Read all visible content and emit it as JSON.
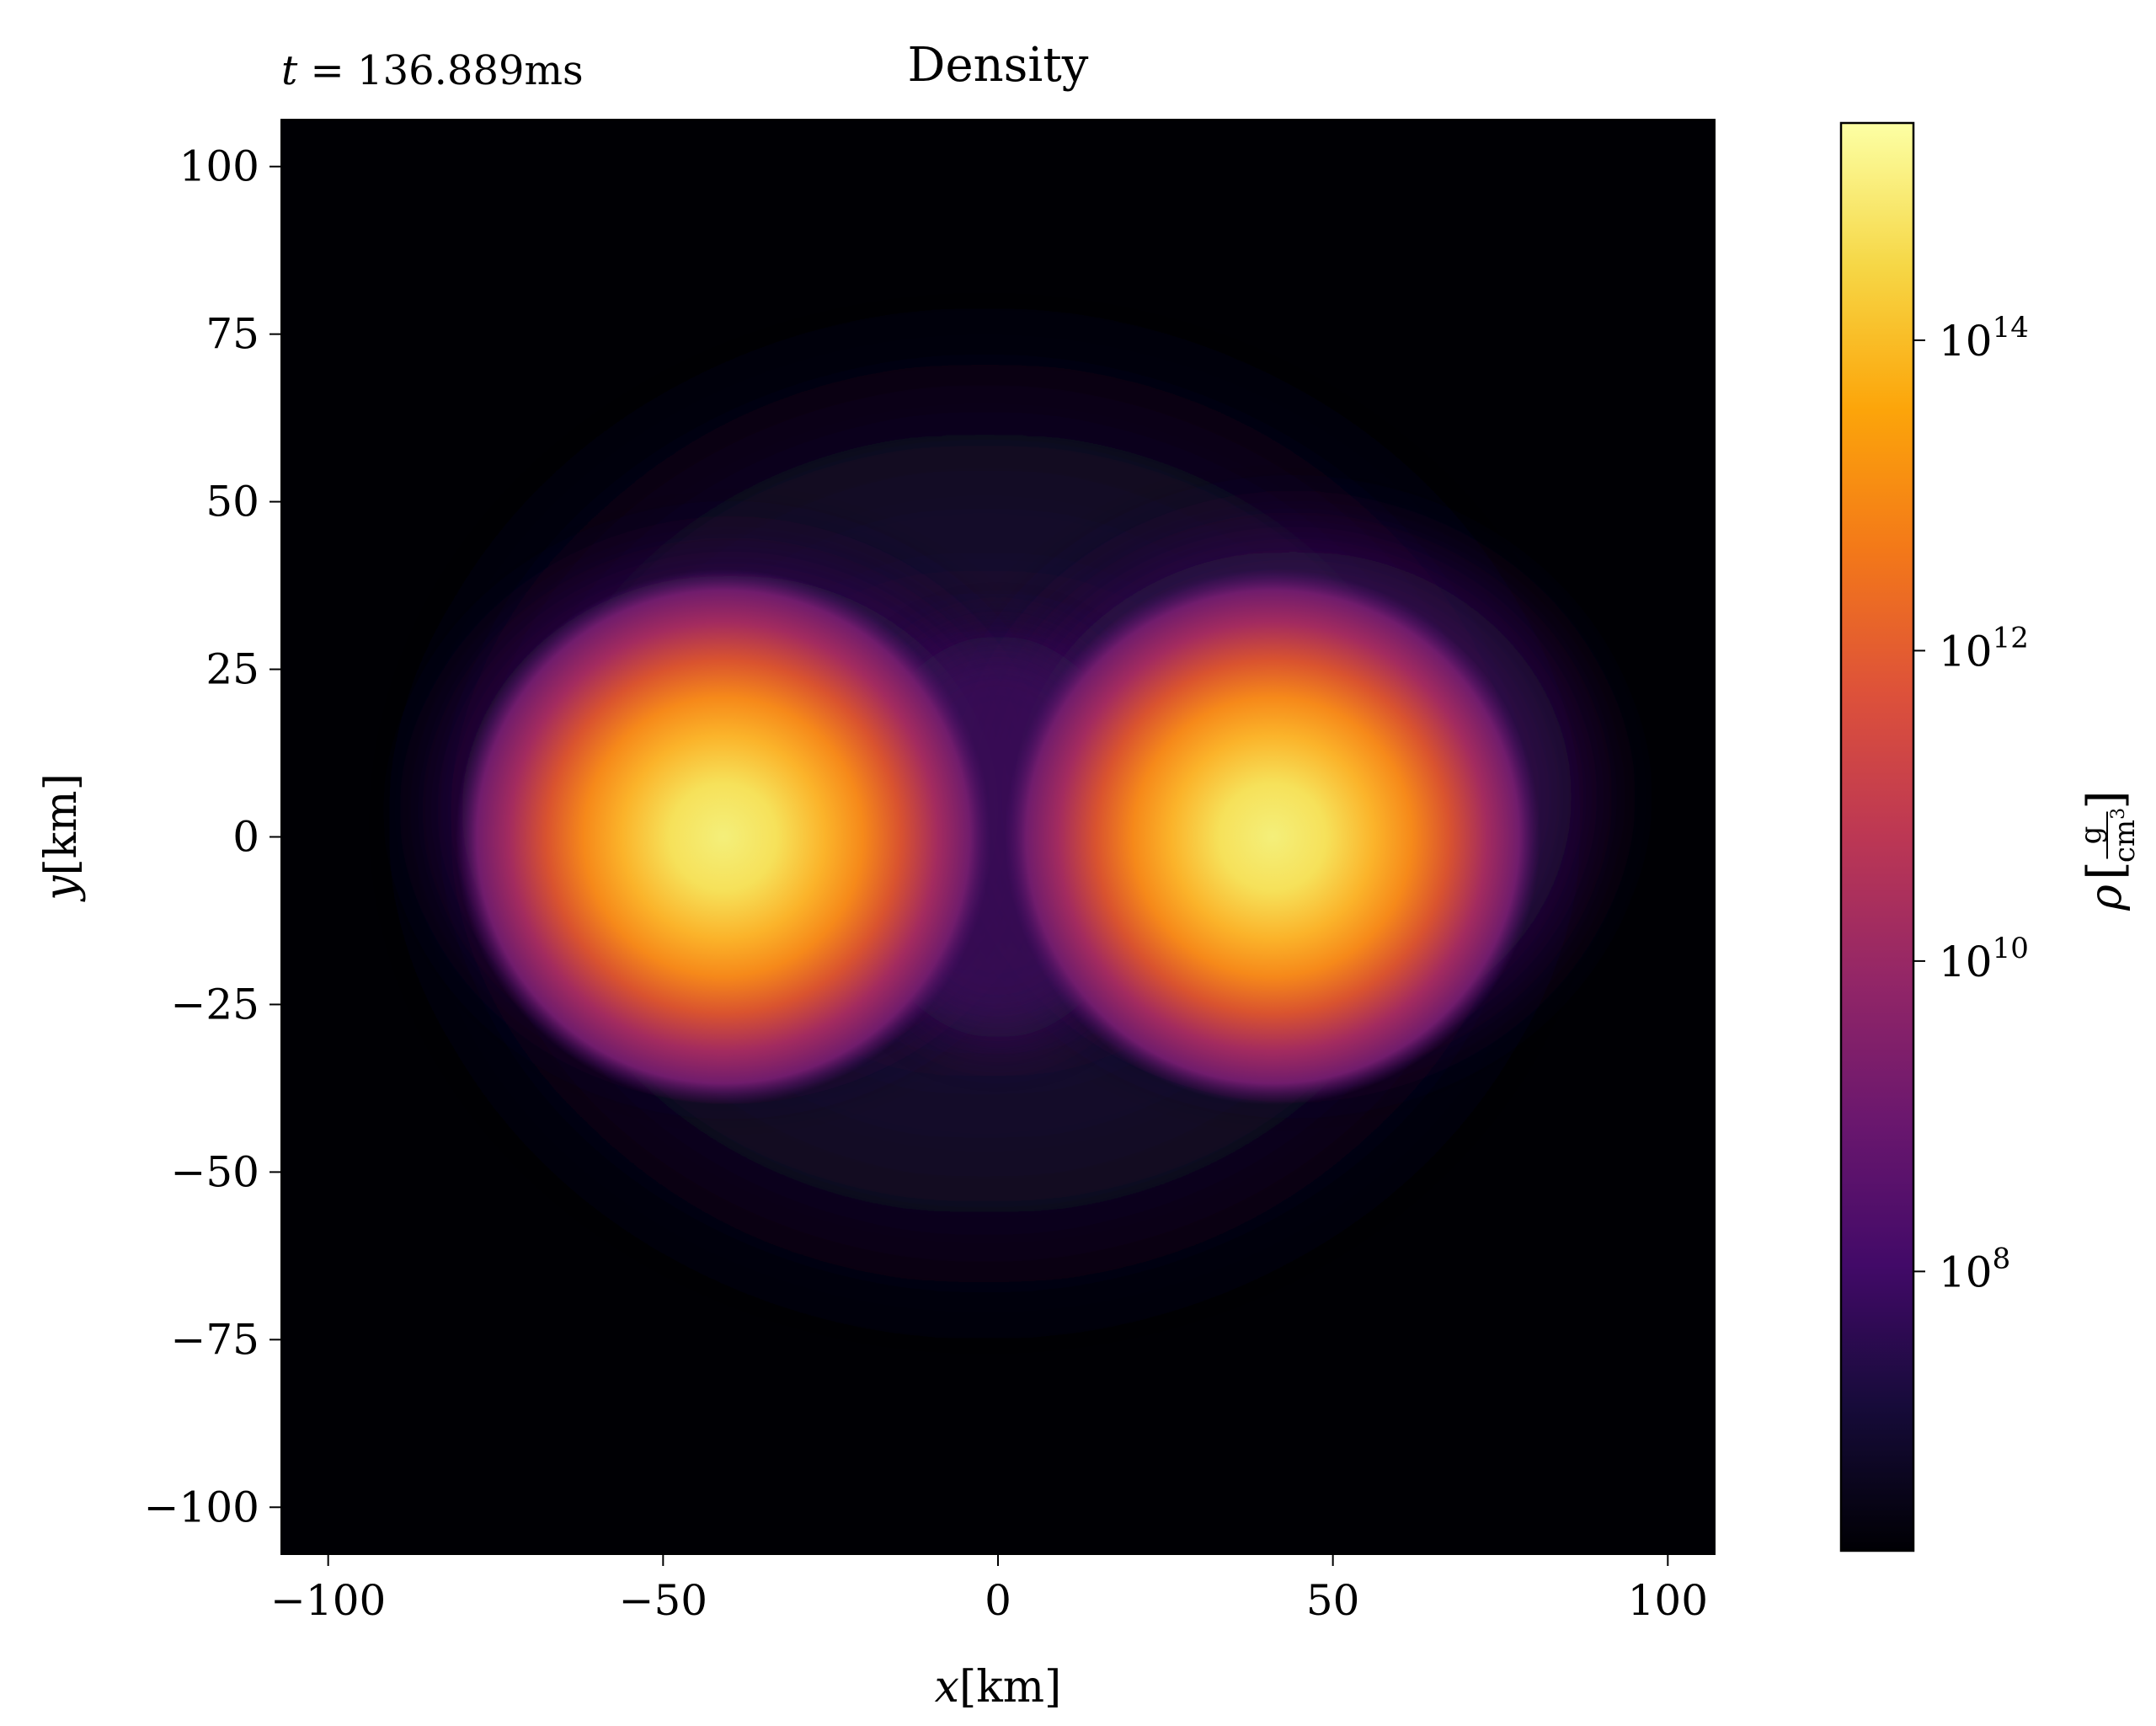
{
  "chart_data": {
    "type": "heatmap",
    "title": "Density",
    "time_label_prefix": "t",
    "time_label_value": "136.889ms",
    "xlabel_var": "x",
    "xlabel_unit": "[km]",
    "ylabel_var": "y",
    "ylabel_unit": "[km]",
    "xlim": [
      -107,
      107
    ],
    "ylim": [
      -107,
      107
    ],
    "xticks": [
      -100,
      -50,
      0,
      50,
      100
    ],
    "xtick_labels": [
      "−100",
      "−50",
      "0",
      "50",
      "100"
    ],
    "yticks": [
      100,
      75,
      50,
      25,
      0,
      -25,
      -50,
      -75,
      -100
    ],
    "ytick_labels": [
      "100",
      "75",
      "50",
      "25",
      "0",
      "−25",
      "−50",
      "−75",
      "−100"
    ],
    "colorbar": {
      "label_symbol": "ρ",
      "label_num": "g",
      "label_den": "cm",
      "label_den_exp": "3",
      "scale": "log",
      "colormap": "inferno",
      "log10_range": [
        6.2,
        15.4
      ],
      "ticks": [
        {
          "value": 8,
          "base": "10",
          "exp": "8"
        },
        {
          "value": 10,
          "base": "10",
          "exp": "10"
        },
        {
          "value": 12,
          "base": "10",
          "exp": "12"
        },
        {
          "value": 14,
          "base": "10",
          "exp": "14"
        }
      ]
    },
    "features": [
      {
        "name": "left-core",
        "x_km": -41,
        "y_km": 0,
        "peak_log10_density": 14.9
      },
      {
        "name": "right-core",
        "x_km": 41,
        "y_km": 0,
        "peak_log10_density": 14.9
      }
    ]
  }
}
